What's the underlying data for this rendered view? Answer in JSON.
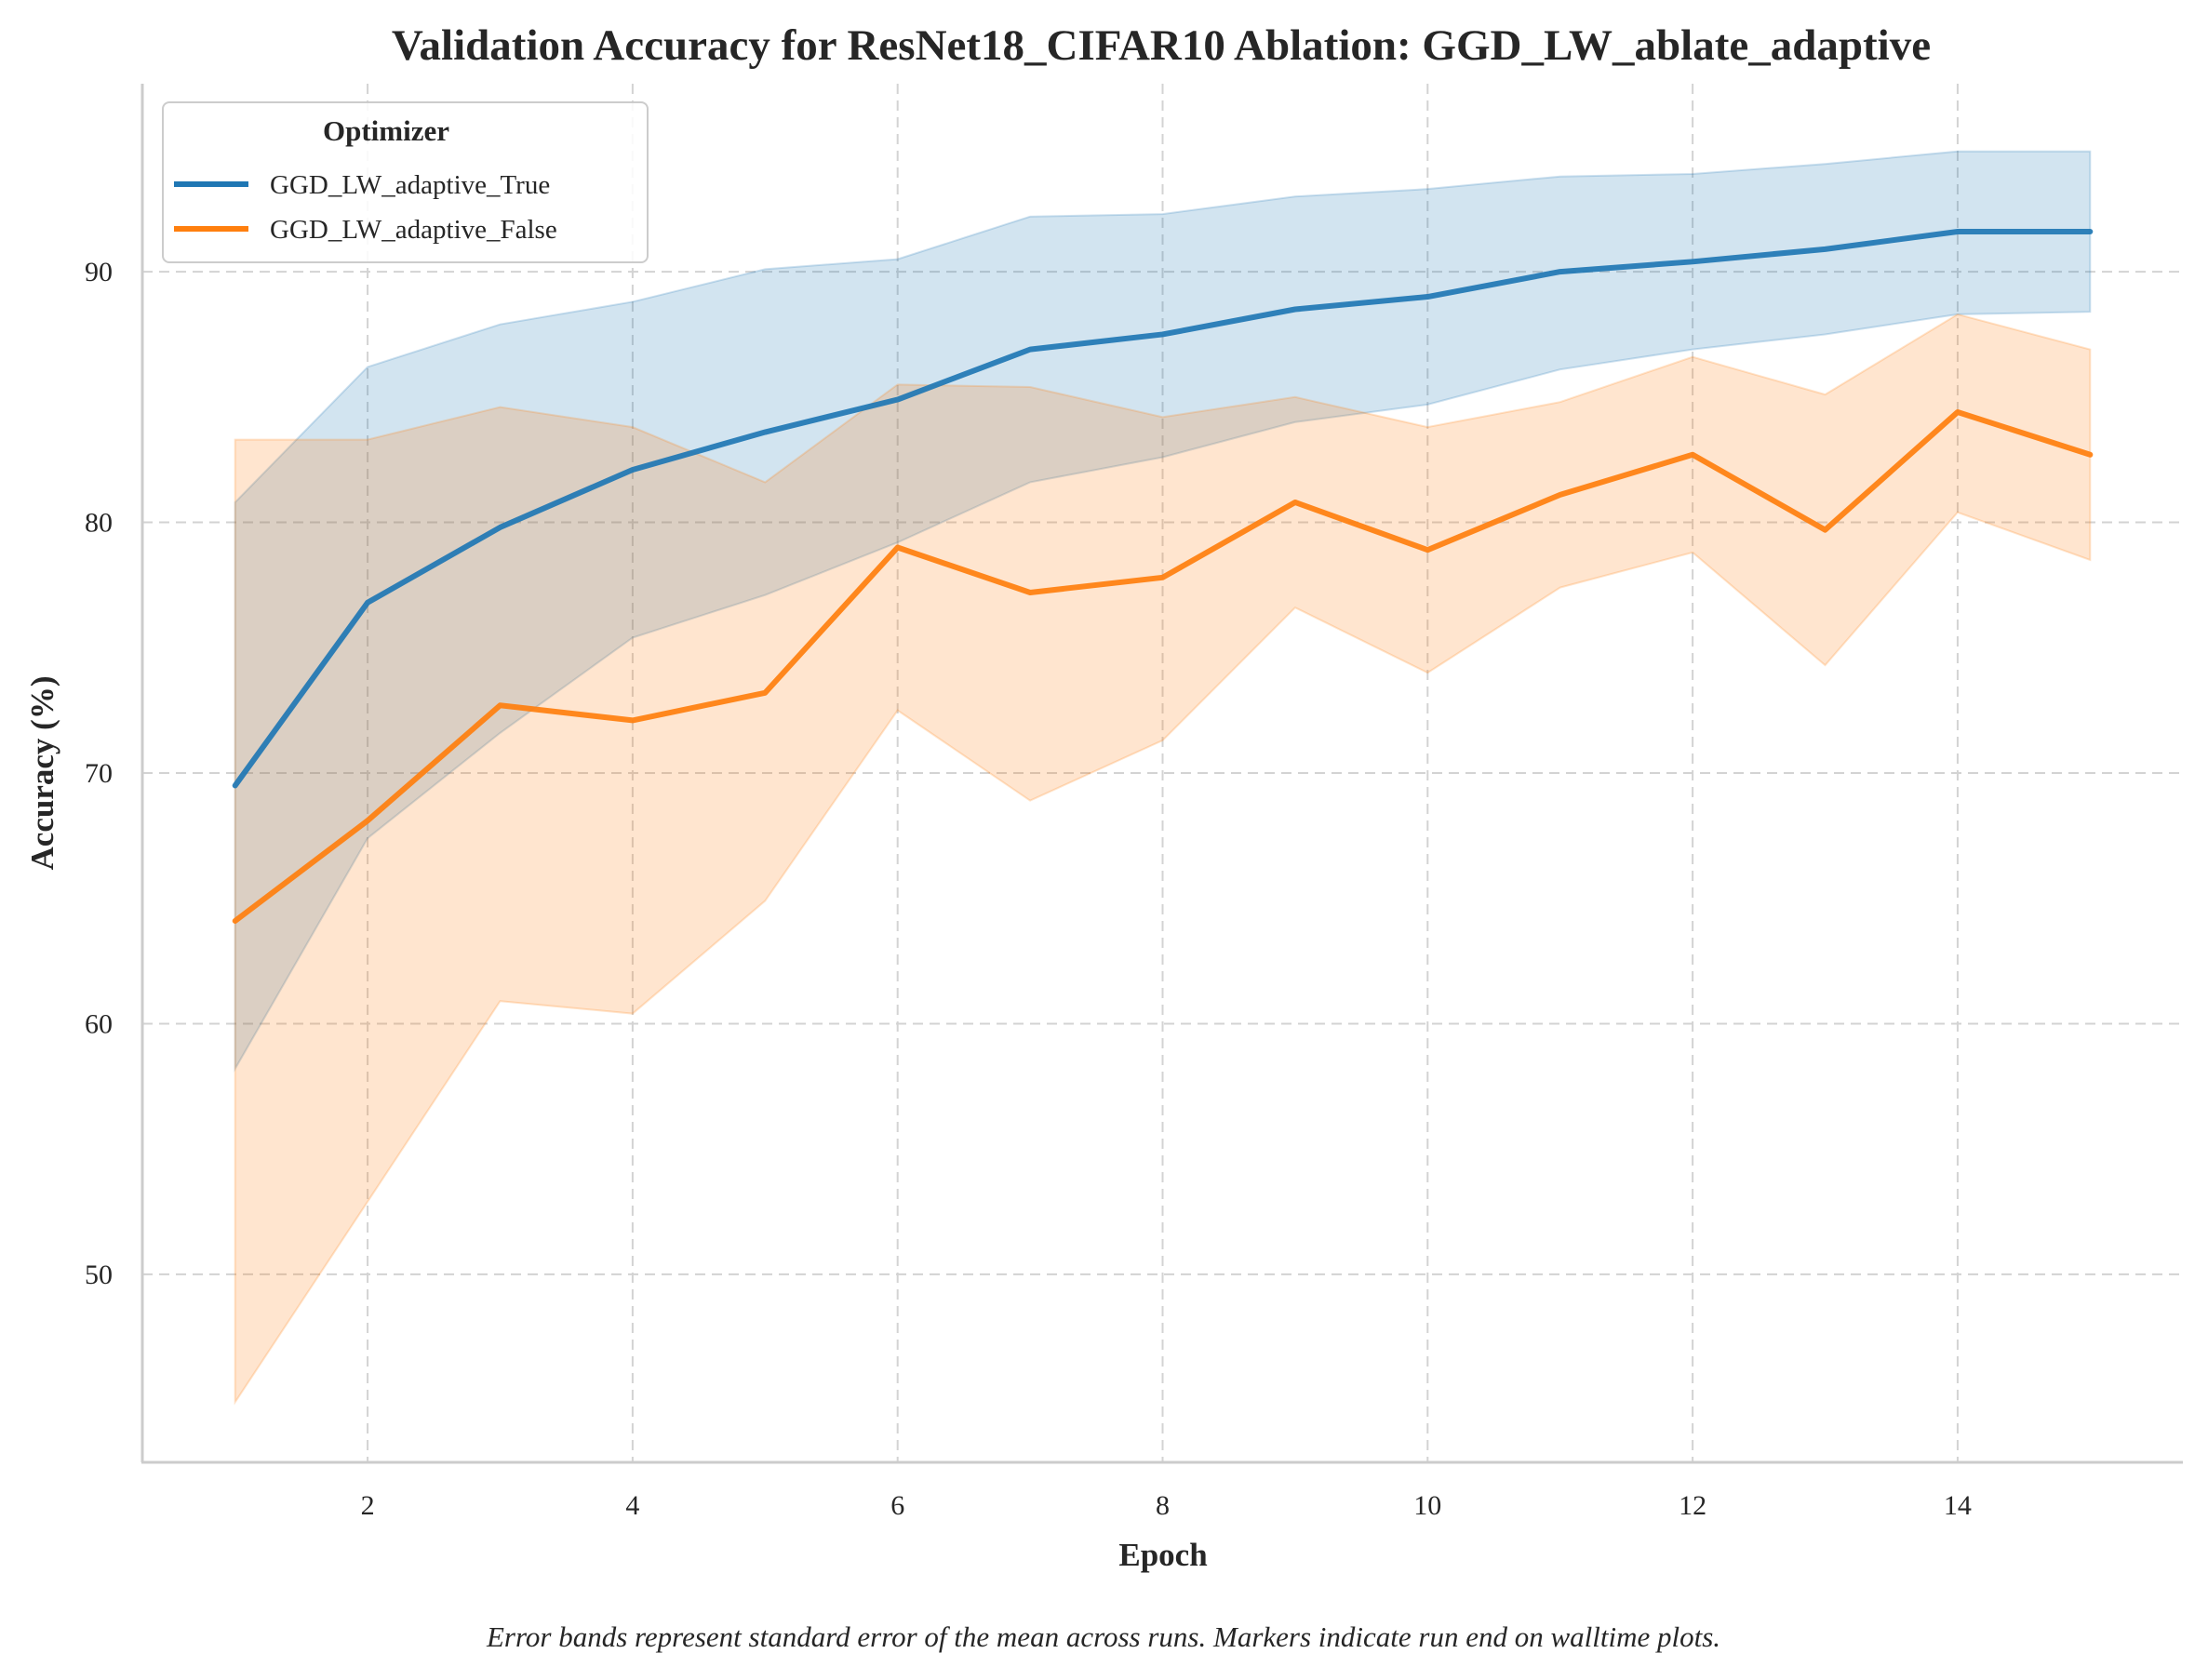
{
  "chart_data": {
    "type": "line",
    "title": "Validation Accuracy for ResNet18_CIFAR10 Ablation: GGD_LW_ablate_adaptive",
    "xlabel": "Epoch",
    "ylabel": "Accuracy (%)",
    "caption": "Error bands represent standard error of the mean across runs. Markers indicate run end on walltime plots.",
    "x": [
      1,
      2,
      3,
      4,
      5,
      6,
      7,
      8,
      9,
      10,
      11,
      12,
      13,
      14,
      15
    ],
    "xlim": [
      0.3,
      15.7
    ],
    "ylim": [
      42.5,
      97.5
    ],
    "xticks": [
      2,
      4,
      6,
      8,
      10,
      12,
      14
    ],
    "yticks": [
      50,
      60,
      70,
      80,
      90
    ],
    "grid": true,
    "legend": {
      "title": "Optimizer",
      "placement": "top-left"
    },
    "series": [
      {
        "name": "GGD_LW_adaptive_True",
        "color": "#1f77b4",
        "values": [
          69.5,
          76.8,
          79.8,
          82.1,
          83.6,
          84.9,
          86.9,
          87.5,
          88.5,
          89.0,
          90.0,
          90.4,
          90.9,
          91.6,
          91.6
        ],
        "lower": [
          58.2,
          67.4,
          71.6,
          75.4,
          77.1,
          79.2,
          81.6,
          82.6,
          84.0,
          84.7,
          86.1,
          86.9,
          87.5,
          88.3,
          88.4
        ],
        "upper": [
          80.8,
          86.2,
          87.9,
          88.8,
          90.1,
          90.5,
          92.2,
          92.3,
          93.0,
          93.3,
          93.8,
          93.9,
          94.3,
          94.8,
          94.8
        ]
      },
      {
        "name": "GGD_LW_adaptive_False",
        "color": "#ff7f0e",
        "values": [
          64.1,
          68.1,
          72.7,
          72.1,
          73.2,
          79.0,
          77.2,
          77.8,
          80.8,
          78.9,
          81.1,
          82.7,
          79.7,
          84.4,
          82.7
        ],
        "lower": [
          44.9,
          52.9,
          60.9,
          60.4,
          64.9,
          72.5,
          68.9,
          71.3,
          76.6,
          74.0,
          77.4,
          78.8,
          74.3,
          80.4,
          78.5
        ],
        "upper": [
          83.3,
          83.3,
          84.6,
          83.8,
          81.6,
          85.5,
          85.4,
          84.2,
          85.0,
          83.8,
          84.8,
          86.6,
          85.1,
          88.3,
          86.9
        ]
      }
    ]
  }
}
